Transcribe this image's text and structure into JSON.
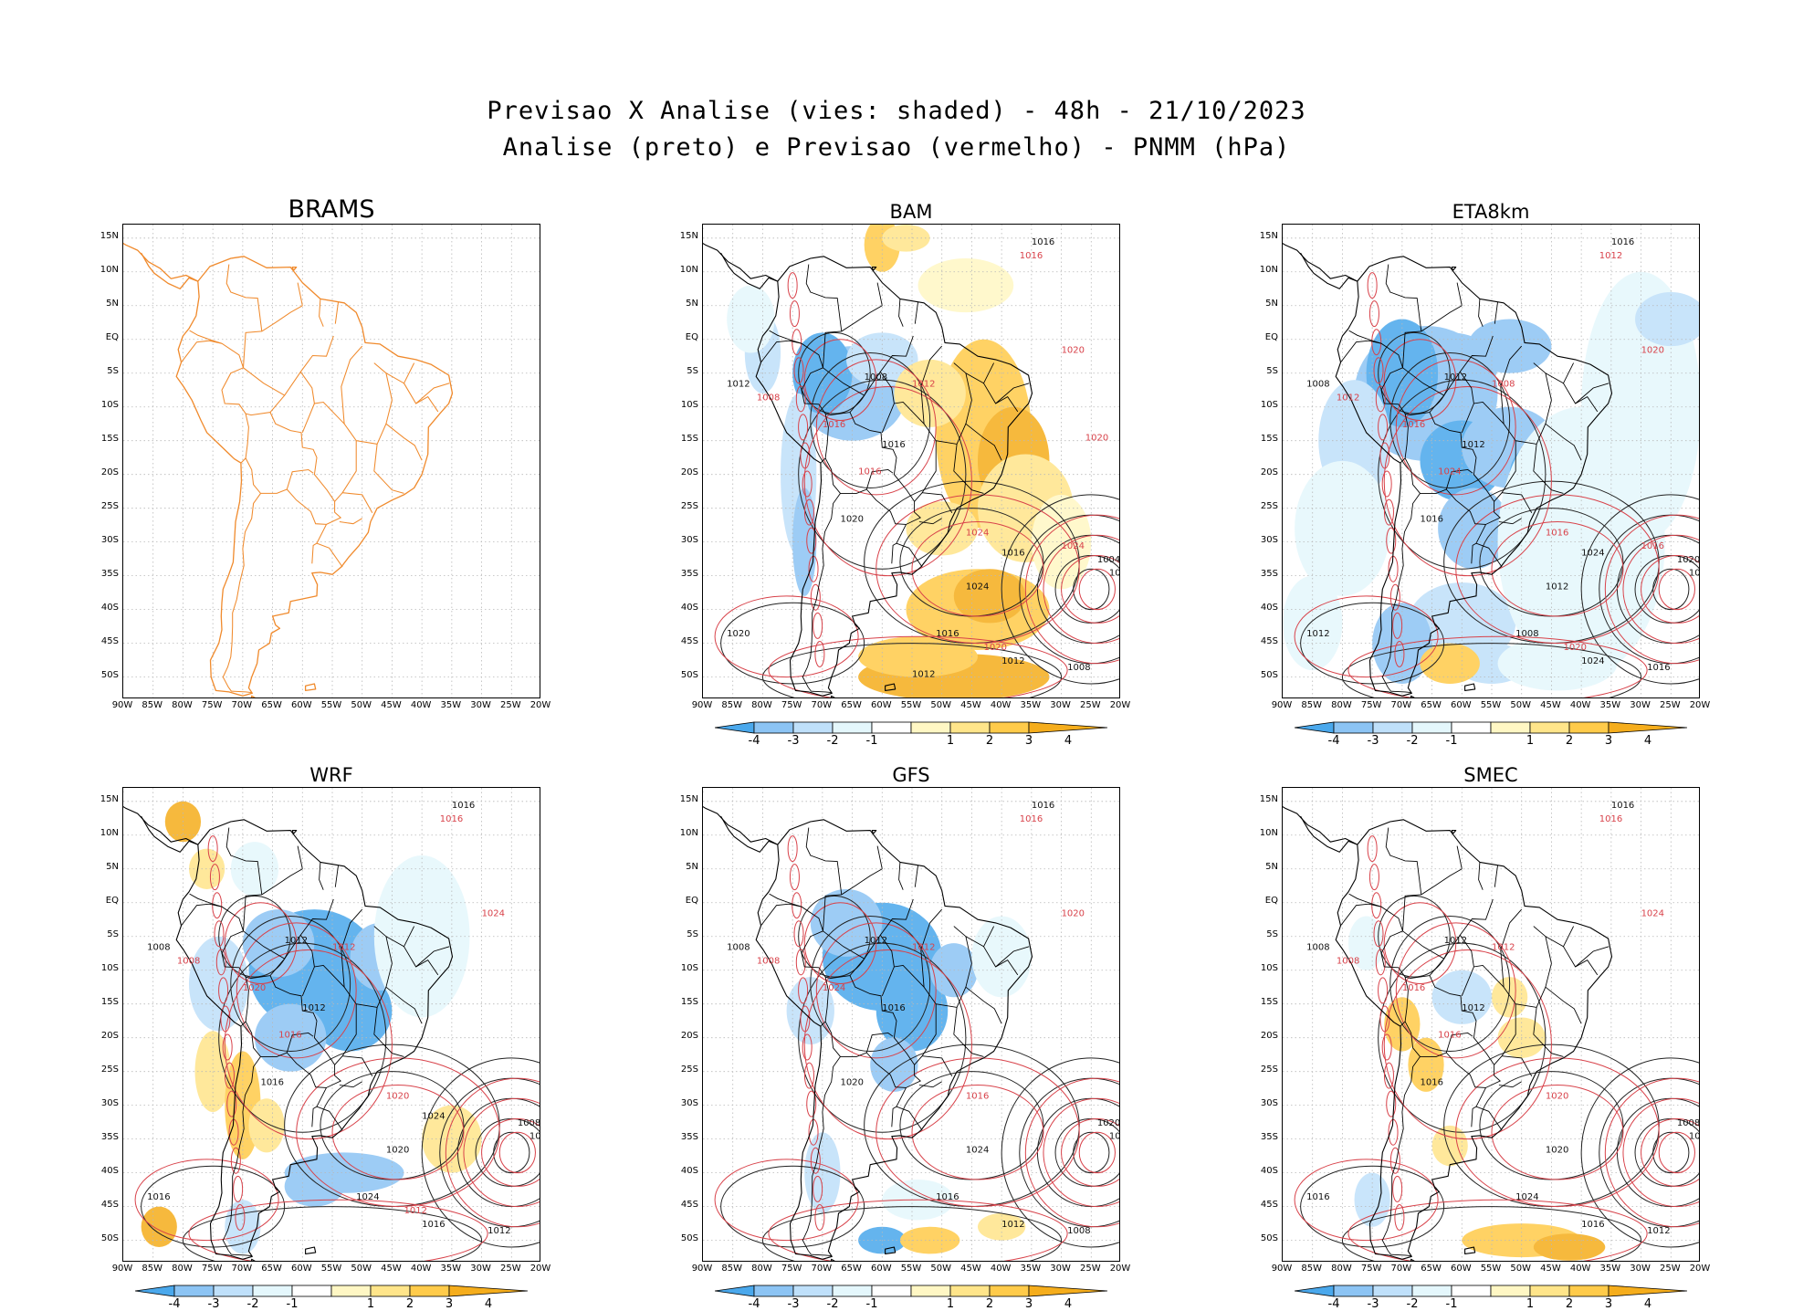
{
  "header": {
    "line1": "Previsao X Analise (vies: shaded) - 48h - 21/10/2023",
    "line2": "Analise (preto) e Previsao (vermelho) - PNMM (hPa)"
  },
  "axes": {
    "lat_labels": [
      "15N",
      "10N",
      "5N",
      "EQ",
      "5S",
      "10S",
      "15S",
      "20S",
      "25S",
      "30S",
      "35S",
      "40S",
      "45S",
      "50S"
    ],
    "lon_labels": [
      "90W",
      "85W",
      "80W",
      "75W",
      "70W",
      "65W",
      "60W",
      "55W",
      "50W",
      "45W",
      "40W",
      "35W",
      "30W",
      "25W",
      "20W"
    ]
  },
  "colorbar": {
    "labels": [
      "-4",
      "-3",
      "-2",
      "-1",
      "1",
      "2",
      "3",
      "4"
    ],
    "colors": [
      "#4aa8ec",
      "#8cc4f4",
      "#bfe0fa",
      "#e4f7fc",
      "#ffffff",
      "#fff7c4",
      "#ffe58a",
      "#ffcb4a",
      "#f5ad1c"
    ]
  },
  "panels": [
    {
      "id": "brams",
      "label": "BRAMS",
      "has_colorbar": false
    },
    {
      "id": "bam",
      "label": "BAM",
      "has_colorbar": true,
      "black_contours": [
        "1016",
        "1008",
        "1012",
        "1016",
        "1020",
        "1024",
        "1016",
        "1012",
        "1008",
        "1004",
        "1024",
        "1020",
        "1016",
        "1012"
      ],
      "red_contours": [
        "1016",
        "1012",
        "1008",
        "1016",
        "1020",
        "1024",
        "1016",
        "1020",
        "1024",
        "1020"
      ]
    },
    {
      "id": "eta8km",
      "label": "ETA8km",
      "has_colorbar": true,
      "black_contours": [
        "1016",
        "1012",
        "1008",
        "1012",
        "1016",
        "1012",
        "1008",
        "1024",
        "1016",
        "1020",
        "1016",
        "1012",
        "1024"
      ],
      "red_contours": [
        "1012",
        "1008",
        "1012",
        "1016",
        "1020",
        "1016",
        "1024",
        "1020",
        "1016"
      ]
    },
    {
      "id": "wrf",
      "label": "WRF",
      "has_colorbar": true,
      "black_contours": [
        "1016",
        "1012",
        "1008",
        "1012",
        "1016",
        "1020",
        "1024",
        "1016",
        "1012",
        "1008",
        "1020",
        "1016",
        "1024"
      ],
      "red_contours": [
        "1016",
        "1012",
        "1008",
        "1020",
        "1024",
        "1020",
        "1016",
        "1012"
      ]
    },
    {
      "id": "gfs",
      "label": "GFS",
      "has_colorbar": true,
      "black_contours": [
        "1016",
        "1012",
        "1008",
        "1016",
        "1020",
        "1024",
        "1016",
        "1012",
        "1008",
        "1020",
        "1016"
      ],
      "red_contours": [
        "1016",
        "1012",
        "1008",
        "1024",
        "1020",
        "1016"
      ]
    },
    {
      "id": "smec",
      "label": "SMEC",
      "has_colorbar": true,
      "black_contours": [
        "1016",
        "1012",
        "1008",
        "1012",
        "1016",
        "1020",
        "1024",
        "1016",
        "1012",
        "1008",
        "1020",
        "1016"
      ],
      "red_contours": [
        "1016",
        "1012",
        "1008",
        "1016",
        "1024",
        "1020",
        "1016"
      ]
    }
  ]
}
